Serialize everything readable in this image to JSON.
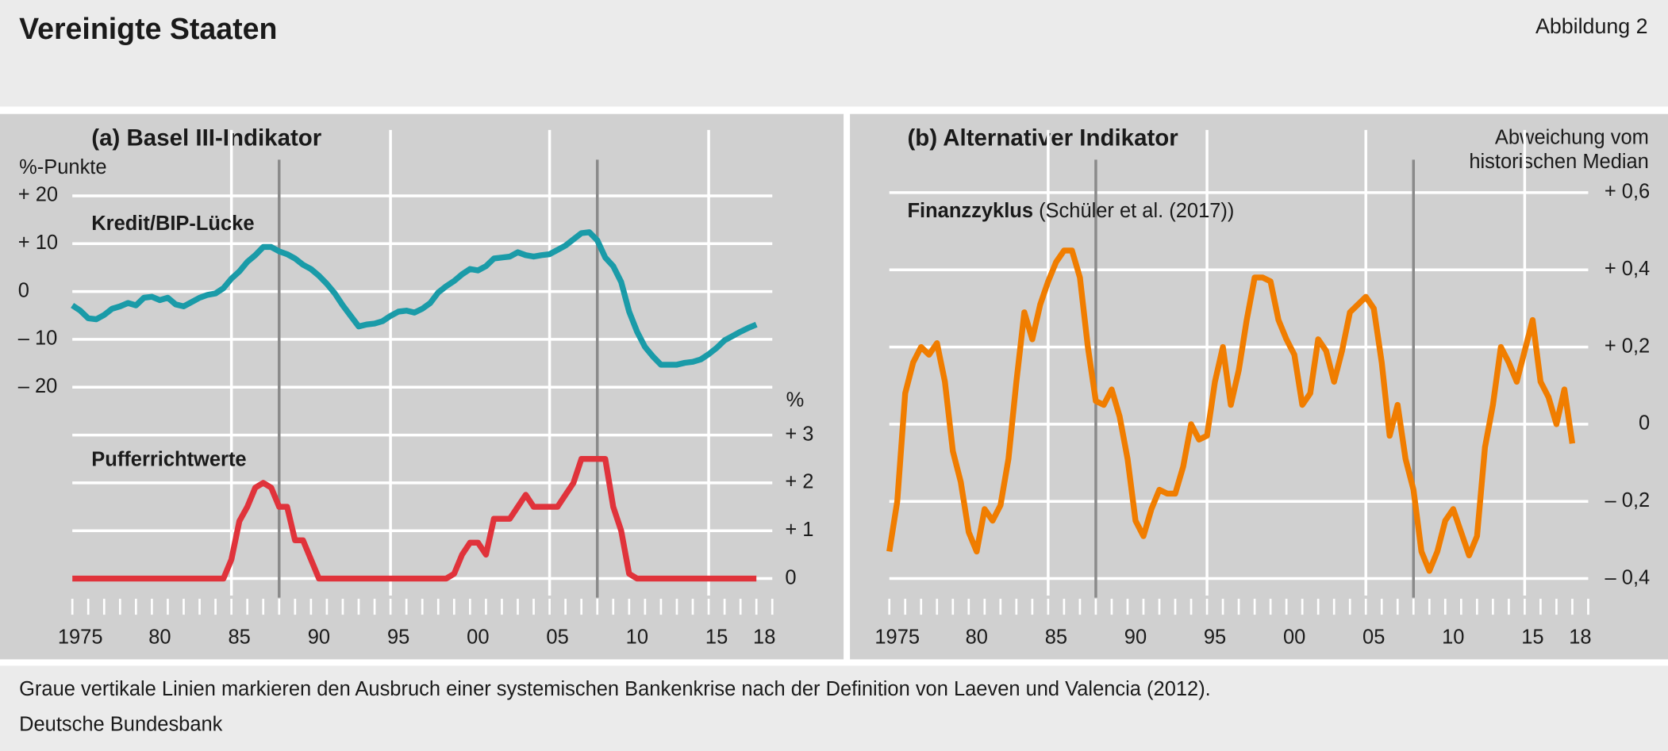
{
  "title": "Vereinigte Staaten",
  "figure_label": "Abbildung 2",
  "footnote": "Graue vertikale Linien markieren den Ausbruch einer systemischen Bankenkrise nach der Definition von Laeven und Valencia (2012).",
  "source": "Deutsche Bundesbank",
  "chart_data": [
    {
      "type": "line",
      "title": "(a) Basel III-Indikator",
      "ylabel": "%-Punkte",
      "y2label": "%",
      "x": [
        1975,
        1975.5,
        1976,
        1976.5,
        1977,
        1977.5,
        1978,
        1978.5,
        1979,
        1979.5,
        1980,
        1980.5,
        1981,
        1981.5,
        1982,
        1982.5,
        1983,
        1983.5,
        1984,
        1984.5,
        1985,
        1985.5,
        1986,
        1986.5,
        1987,
        1987.5,
        1988,
        1988.5,
        1989,
        1989.5,
        1990,
        1990.5,
        1991,
        1991.5,
        1992,
        1992.5,
        1993,
        1993.5,
        1994,
        1994.5,
        1995,
        1995.5,
        1996,
        1996.5,
        1997,
        1997.5,
        1998,
        1998.5,
        1999,
        1999.5,
        2000,
        2000.5,
        2001,
        2001.5,
        2002,
        2002.5,
        2003,
        2003.5,
        2004,
        2004.5,
        2005,
        2005.5,
        2006,
        2006.5,
        2007,
        2007.5,
        2008,
        2008.5,
        2009,
        2009.5,
        2010,
        2010.5,
        2011,
        2011.5,
        2012,
        2012.5,
        2013,
        2013.5,
        2014,
        2014.5,
        2015,
        2015.5,
        2016,
        2016.5,
        2017,
        2017.5,
        2018
      ],
      "series": [
        {
          "name": "Kredit/BIP-Lücke",
          "color": "#1a9ba8",
          "values": [
            -2.9,
            -4.0,
            -5.6,
            -5.8,
            -4.9,
            -3.6,
            -3.1,
            -2.4,
            -2.9,
            -1.3,
            -1.1,
            -1.8,
            -1.3,
            -2.7,
            -3.1,
            -2.2,
            -1.3,
            -0.7,
            -0.4,
            0.7,
            2.7,
            4.2,
            6.2,
            7.6,
            9.3,
            9.3,
            8.4,
            7.8,
            6.9,
            5.6,
            4.7,
            3.3,
            1.6,
            -0.4,
            -2.9,
            -5.1,
            -7.3,
            -6.9,
            -6.7,
            -6.2,
            -5.1,
            -4.2,
            -4.0,
            -4.4,
            -3.6,
            -2.4,
            -0.2,
            1.1,
            2.2,
            3.6,
            4.7,
            4.4,
            5.3,
            6.9,
            7.1,
            7.3,
            8.2,
            7.6,
            7.3,
            7.6,
            7.8,
            8.7,
            9.6,
            10.9,
            12.2,
            12.4,
            10.7,
            7.1,
            5.3,
            2.0,
            -4.2,
            -8.4,
            -11.6,
            -13.6,
            -15.3,
            -15.3,
            -15.3,
            -14.9,
            -14.7,
            -14.2,
            -13.1,
            -11.8,
            -10.2,
            -9.3,
            -8.4,
            -7.6,
            -6.9
          ]
        },
        {
          "name": "Pufferrichtwerte",
          "color": "#e0333b",
          "axis": "y2",
          "values": [
            0,
            0,
            0,
            0,
            0,
            0,
            0,
            0,
            0,
            0,
            0,
            0,
            0,
            0,
            0,
            0,
            0,
            0,
            0,
            0,
            0.4,
            1.2,
            1.5,
            1.9,
            2.0,
            1.9,
            1.5,
            1.5,
            0.8,
            0.8,
            0.4,
            0,
            0,
            0,
            0,
            0,
            0,
            0,
            0,
            0,
            0,
            0,
            0,
            0,
            0,
            0,
            0,
            0,
            0.1,
            0.5,
            0.75,
            0.75,
            0.5,
            1.25,
            1.25,
            1.25,
            1.5,
            1.75,
            1.5,
            1.5,
            1.5,
            1.5,
            1.75,
            2.0,
            2.5,
            2.5,
            2.5,
            2.5,
            1.5,
            1.0,
            0.1,
            0,
            0,
            0,
            0,
            0,
            0,
            0,
            0,
            0,
            0,
            0,
            0,
            0,
            0,
            0,
            0
          ]
        }
      ],
      "xlim": [
        1975,
        2019
      ],
      "xticks": [
        {
          "value": 1975,
          "label": "1975"
        },
        {
          "value": 1980,
          "label": "80"
        },
        {
          "value": 1985,
          "label": "85"
        },
        {
          "value": 1990,
          "label": "90"
        },
        {
          "value": 1995,
          "label": "95"
        },
        {
          "value": 2000,
          "label": "00"
        },
        {
          "value": 2005,
          "label": "05"
        },
        {
          "value": 2010,
          "label": "10"
        },
        {
          "value": 2015,
          "label": "15"
        },
        {
          "value": 2018,
          "label": "18"
        }
      ],
      "xminorticks": [
        1975,
        1976,
        1977,
        1978,
        1979,
        1980,
        1981,
        1982,
        1983,
        1984,
        1985,
        1986,
        1987,
        1988,
        1989,
        1990,
        1991,
        1992,
        1993,
        1994,
        1995,
        1996,
        1997,
        1998,
        1999,
        2000,
        2001,
        2002,
        2003,
        2004,
        2005,
        2006,
        2007,
        2008,
        2009,
        2010,
        2011,
        2012,
        2013,
        2014,
        2015,
        2016,
        2017,
        2018,
        2019
      ],
      "xgrid": [
        1985,
        1995,
        2005,
        2015
      ],
      "crisis_lines": [
        1988,
        2008
      ],
      "ylim": [
        -60,
        20
      ],
      "yticks": [
        {
          "value": 20,
          "label": "+ 20"
        },
        {
          "value": 10,
          "label": "+ 10"
        },
        0,
        {
          "value": -10,
          "label": "– 10"
        },
        {
          "value": -20,
          "label": "– 20"
        }
      ],
      "y2lim": [
        0,
        8
      ],
      "y2ticks": [
        0,
        {
          "value": 1,
          "label": "+ 1"
        },
        {
          "value": 2,
          "label": "+ 2"
        },
        {
          "value": 3,
          "label": "+ 3"
        }
      ],
      "grid": true
    },
    {
      "type": "line",
      "title": "(b) Alternativer Indikator",
      "ylabel": [
        "Abweichung vom",
        "historischen Median"
      ],
      "yaxis_position": "right",
      "x": [
        1975,
        1975.5,
        1976,
        1976.5,
        1977,
        1977.5,
        1978,
        1978.5,
        1979,
        1979.5,
        1980,
        1980.5,
        1981,
        1981.5,
        1982,
        1982.5,
        1983,
        1983.5,
        1984,
        1984.5,
        1985,
        1985.5,
        1986,
        1986.5,
        1987,
        1987.5,
        1988,
        1988.5,
        1989,
        1989.5,
        1990,
        1990.5,
        1991,
        1991.5,
        1992,
        1992.5,
        1993,
        1993.5,
        1994,
        1994.5,
        1995,
        1995.5,
        1996,
        1996.5,
        1997,
        1997.5,
        1998,
        1998.5,
        1999,
        1999.5,
        2000,
        2000.5,
        2001,
        2001.5,
        2002,
        2002.5,
        2003,
        2003.5,
        2004,
        2004.5,
        2005,
        2005.5,
        2006,
        2006.5,
        2007,
        2007.5,
        2008,
        2008.5,
        2009,
        2009.5,
        2010,
        2010.5,
        2011,
        2011.5,
        2012,
        2012.5,
        2013,
        2013.5,
        2014,
        2014.5,
        2015,
        2015.5,
        2016,
        2016.5,
        2017,
        2017.5,
        2018
      ],
      "series": [
        {
          "name": "Finanzzyklus",
          "note": "(Schüler et al. (2017))",
          "color": "#f07d00",
          "values": [
            -0.33,
            -0.2,
            0.08,
            0.16,
            0.2,
            0.18,
            0.21,
            0.11,
            -0.07,
            -0.15,
            -0.28,
            -0.33,
            -0.22,
            -0.25,
            -0.21,
            -0.09,
            0.11,
            0.29,
            0.22,
            0.31,
            0.37,
            0.42,
            0.45,
            0.45,
            0.38,
            0.2,
            0.06,
            0.05,
            0.09,
            0.02,
            -0.09,
            -0.25,
            -0.29,
            -0.22,
            -0.17,
            -0.18,
            -0.18,
            -0.11,
            0.0,
            -0.04,
            -0.03,
            0.11,
            0.2,
            0.05,
            0.14,
            0.27,
            0.38,
            0.38,
            0.37,
            0.27,
            0.22,
            0.18,
            0.05,
            0.08,
            0.22,
            0.19,
            0.11,
            0.19,
            0.29,
            0.31,
            0.33,
            0.3,
            0.16,
            -0.03,
            0.05,
            -0.09,
            -0.17,
            -0.33,
            -0.38,
            -0.33,
            -0.25,
            -0.22,
            -0.28,
            -0.34,
            -0.29,
            -0.06,
            0.05,
            0.2,
            0.16,
            0.11,
            0.19,
            0.27,
            0.11,
            0.07,
            0.0,
            0.09,
            -0.05
          ]
        }
      ],
      "xlim": [
        1975,
        2019
      ],
      "xticks": [
        {
          "value": 1975,
          "label": "1975"
        },
        {
          "value": 1980,
          "label": "80"
        },
        {
          "value": 1985,
          "label": "85"
        },
        {
          "value": 1990,
          "label": "90"
        },
        {
          "value": 1995,
          "label": "95"
        },
        {
          "value": 2000,
          "label": "00"
        },
        {
          "value": 2005,
          "label": "05"
        },
        {
          "value": 2010,
          "label": "10"
        },
        {
          "value": 2015,
          "label": "15"
        },
        {
          "value": 2018,
          "label": "18"
        }
      ],
      "xminorticks": [
        1975,
        1976,
        1977,
        1978,
        1979,
        1980,
        1981,
        1982,
        1983,
        1984,
        1985,
        1986,
        1987,
        1988,
        1989,
        1990,
        1991,
        1992,
        1993,
        1994,
        1995,
        1996,
        1997,
        1998,
        1999,
        2000,
        2001,
        2002,
        2003,
        2004,
        2005,
        2006,
        2007,
        2008,
        2009,
        2010,
        2011,
        2012,
        2013,
        2014,
        2015,
        2016,
        2017,
        2018,
        2019
      ],
      "xgrid": [
        1985,
        1995,
        2005,
        2015
      ],
      "crisis_lines": [
        1988,
        2008
      ],
      "ylim": [
        -0.4,
        0.6
      ],
      "yticks": [
        {
          "value": 0.6,
          "label": "+ 0,6"
        },
        {
          "value": 0.4,
          "label": "+ 0,4"
        },
        {
          "value": 0.2,
          "label": "+ 0,2"
        },
        0,
        {
          "value": -0.2,
          "label": "– 0,2"
        },
        {
          "value": -0.4,
          "label": "– 0,4"
        }
      ],
      "grid": true
    }
  ]
}
